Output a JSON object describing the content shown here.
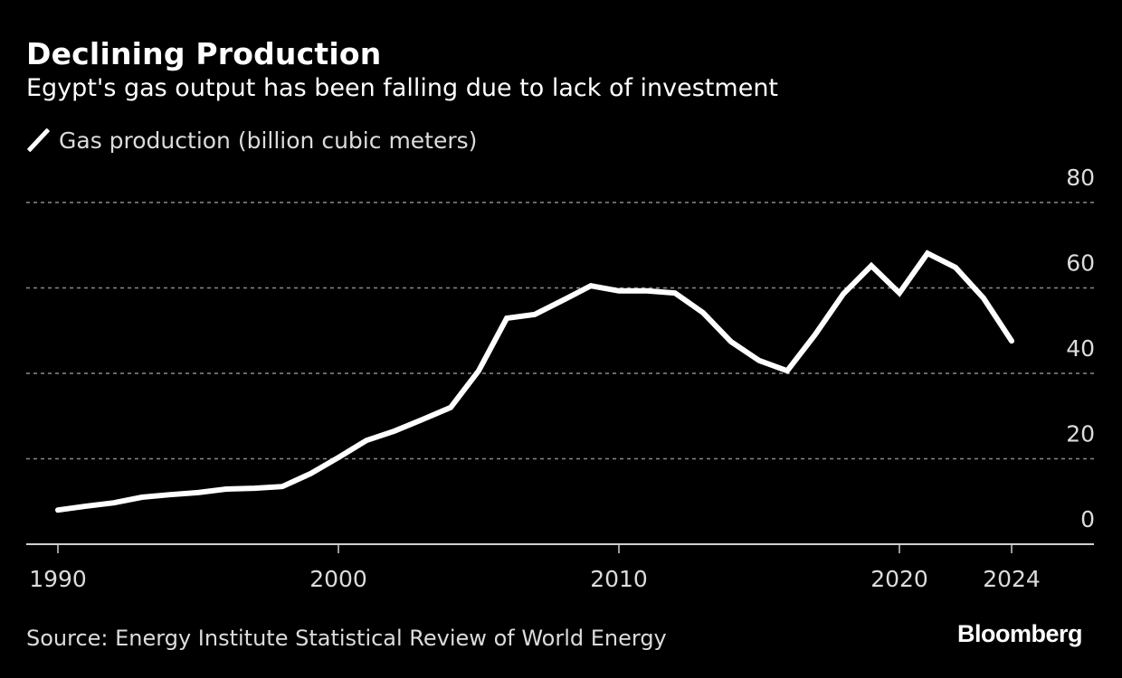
{
  "header": {
    "title": "Declining Production",
    "subtitle": "Egypt's gas output has been falling due to lack of investment"
  },
  "legend": {
    "label": "Gas production (billion cubic meters)",
    "color": "#ffffff"
  },
  "footer": {
    "source": "Source: Energy Institute Statistical Review of World Energy",
    "brand": "Bloomberg"
  },
  "chart_data": {
    "type": "line",
    "title": "Declining Production",
    "subtitle": "Egypt's gas output has been falling due to lack of investment",
    "xlabel": "",
    "ylabel": "",
    "x": [
      1990,
      1991,
      1992,
      1993,
      1994,
      1995,
      1996,
      1997,
      1998,
      1999,
      2000,
      2001,
      2002,
      2003,
      2004,
      2005,
      2006,
      2007,
      2008,
      2009,
      2010,
      2011,
      2012,
      2013,
      2014,
      2015,
      2016,
      2017,
      2018,
      2019,
      2020,
      2021,
      2022,
      2023,
      2024
    ],
    "series": [
      {
        "name": "Gas production (billion cubic meters)",
        "color": "#ffffff",
        "values": [
          8.0,
          8.9,
          9.7,
          11.0,
          11.6,
          12.1,
          12.9,
          13.1,
          13.5,
          16.5,
          20.3,
          24.3,
          26.5,
          29.2,
          32.0,
          40.6,
          52.9,
          53.8,
          57.1,
          60.5,
          59.3,
          59.3,
          58.8,
          54.2,
          47.4,
          43.0,
          40.6,
          49.1,
          58.6,
          65.2,
          58.8,
          68.1,
          64.8,
          57.6,
          47.6
        ]
      }
    ],
    "xlim": [
      1989,
      2027
    ],
    "ylim": [
      0,
      80
    ],
    "x_ticks": [
      1990,
      2000,
      2010,
      2020,
      2024
    ],
    "x_tick_labels": [
      "1990",
      "2000",
      "2010",
      "2020",
      "2024"
    ],
    "y_ticks": [
      0,
      20,
      40,
      60,
      80
    ],
    "y_tick_labels": [
      "0",
      "20",
      "40",
      "60",
      "80"
    ],
    "y_axis_side": "right",
    "grid": true,
    "grid_style": "dotted-horizontal",
    "legend_position": "top-left",
    "background": "#000000",
    "grid_color": "#8a8a8a",
    "axis_color": "#cfcfcf"
  }
}
